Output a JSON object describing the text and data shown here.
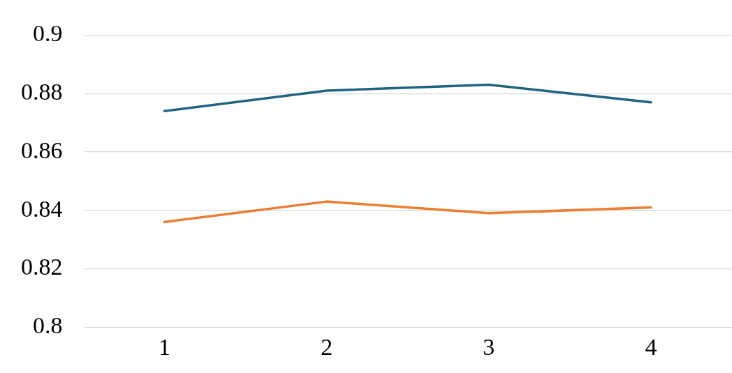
{
  "chart_data": {
    "type": "line",
    "categories": [
      "1",
      "2",
      "3",
      "4"
    ],
    "series": [
      {
        "color": "#1f6582",
        "values": [
          0.874,
          0.881,
          0.883,
          0.877
        ]
      },
      {
        "color": "#ed7d31",
        "values": [
          0.836,
          0.843,
          0.839,
          0.841
        ]
      }
    ],
    "ylim": [
      0.8,
      0.9
    ],
    "yticks": [
      0.8,
      0.82,
      0.84,
      0.86,
      0.88,
      0.9
    ],
    "grid": "y",
    "marker": "none",
    "line_style": "solid"
  }
}
